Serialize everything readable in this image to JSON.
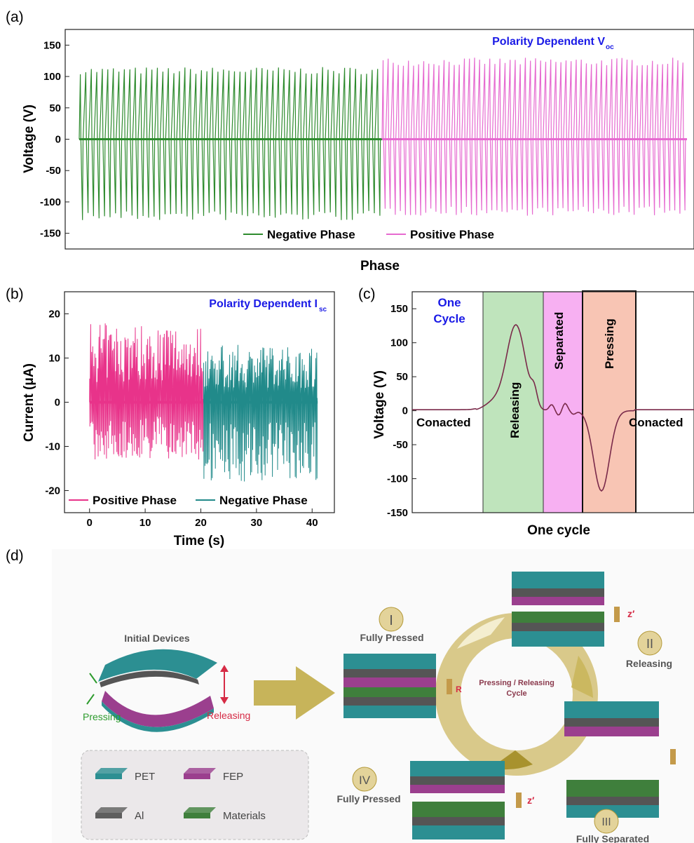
{
  "chart_data": [
    {
      "panel": "(a)",
      "type": "line",
      "title": "Polarity Dependent V",
      "title_sub": "oc",
      "xlabel": "Phase",
      "ylabel": "Voltage (V)",
      "ylim": [
        -175,
        175
      ],
      "yticks": [
        "150",
        "100",
        "50",
        "0",
        "-50",
        "-100",
        "-150"
      ],
      "legend_position": "bottom-center",
      "series": [
        {
          "name": "Negative Phase",
          "color": "#2e8b2e",
          "peak_max": 115,
          "peak_min": -130,
          "cycles": 55
        },
        {
          "name": "Positive Phase",
          "color": "#e66ad0",
          "peak_max": 130,
          "peak_min": -122,
          "cycles": 60
        }
      ]
    },
    {
      "panel": "(b)",
      "type": "line",
      "title": "Polarity Dependent I",
      "title_sub": "sc",
      "xlabel": "Time (s)",
      "ylabel": "Current (μA)",
      "xlim": [
        -4.5,
        44
      ],
      "ylim": [
        -25,
        25
      ],
      "xticks": [
        "0",
        "10",
        "20",
        "30",
        "40"
      ],
      "yticks": [
        "20",
        "10",
        "0",
        "-10",
        "-20"
      ],
      "legend_position": "bottom",
      "series": [
        {
          "name": "Positive Phase",
          "color": "#e8338a",
          "x_range": [
            0,
            20.5
          ],
          "peak_max": 18,
          "peak_min": -13
        },
        {
          "name": "Negative Phase",
          "color": "#218a8a",
          "x_range": [
            20.5,
            41
          ],
          "peak_max": 13,
          "peak_min": -18
        }
      ]
    },
    {
      "panel": "(c)",
      "type": "line",
      "xlabel": "One cycle",
      "ylabel": "Voltage (V)",
      "ylim": [
        -150,
        175
      ],
      "yticks": [
        "150",
        "100",
        "50",
        "0",
        "-50",
        "-100",
        "-150"
      ],
      "corner_label": [
        "One",
        "Cycle"
      ],
      "regions": [
        {
          "label": "Conacted",
          "color": "#ffffff"
        },
        {
          "label": "Releasing",
          "color": "#bfe4bc"
        },
        {
          "label": "Separated",
          "color": "#f7b0f2"
        },
        {
          "label": "Pressing",
          "color": "#f8c5b4"
        },
        {
          "label": "Conacted",
          "color": "#ffffff"
        }
      ],
      "series": [
        {
          "color": "#7a2a4a",
          "peak_max": 126,
          "peak_min": -118
        }
      ]
    }
  ],
  "panel_d": {
    "label": "(d)",
    "initial_devices": "Initial Devices",
    "pressing": "Pressing",
    "releasing": "Releasing",
    "cycle_label": [
      "Pressing / Releasing",
      "Cycle"
    ],
    "stages": [
      {
        "numeral": "I",
        "label": "Fully Pressed"
      },
      {
        "numeral": "II",
        "label": "Releasing"
      },
      {
        "numeral": "III",
        "label": "Fully Separated"
      },
      {
        "numeral": "IV",
        "label": "Fully Pressed"
      }
    ],
    "resistor": "R",
    "z_label": "z′",
    "legend": [
      {
        "name": "PET",
        "color": "#2c8f92"
      },
      {
        "name": "FEP",
        "color": "#9b3f8e"
      },
      {
        "name": "Al",
        "color": "#5e5e5e"
      },
      {
        "name": "Materials",
        "color": "#3f7f3c"
      }
    ],
    "colors": {
      "arrow": "#c7b45a",
      "numeral_circle": "#e3d39a",
      "accent_red": "#d62b45",
      "accent_green": "#2d9b2d"
    }
  }
}
